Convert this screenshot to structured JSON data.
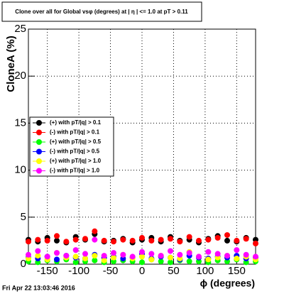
{
  "chart_data": {
    "type": "scatter",
    "title": "Clone  over all for Global vsφ (degrees) at | η | <= 1.0 at pT > 0.11",
    "x_label": "ϕ (degrees)",
    "y_label": "CloneA (%)",
    "footer": "Fri Apr 22 13:03:46 2016",
    "xlim": [
      -180,
      180
    ],
    "ylim": [
      0,
      25
    ],
    "xticks": [
      -150,
      -100,
      -50,
      0,
      50,
      100,
      150
    ],
    "yticks": [
      0,
      5,
      10,
      15,
      20,
      25
    ],
    "grid": true,
    "legend": "left",
    "x": [
      -180,
      -165,
      -150,
      -135,
      -120,
      -105,
      -90,
      -75,
      -60,
      -45,
      -30,
      -15,
      0,
      15,
      30,
      45,
      60,
      75,
      90,
      105,
      120,
      135,
      150,
      165,
      180
    ],
    "series": [
      {
        "name": "(+) with pT/|q| > 0.1",
        "color": "#000000",
        "values": [
          2.6,
          2.4,
          2.8,
          2.5,
          2.3,
          2.9,
          2.6,
          3.2,
          2.4,
          2.5,
          2.7,
          2.3,
          2.6,
          2.8,
          2.4,
          2.9,
          2.5,
          2.6,
          2.3,
          2.7,
          3.0,
          2.5,
          2.4,
          2.8,
          2.6
        ]
      },
      {
        "name": "(-) with pT/|q| > 0.1",
        "color": "#ff0000",
        "values": [
          2.4,
          2.6,
          2.5,
          3.0,
          2.4,
          2.6,
          2.7,
          3.5,
          2.5,
          2.4,
          2.6,
          2.5,
          2.8,
          2.5,
          2.6,
          2.7,
          2.4,
          2.9,
          2.5,
          2.6,
          2.8,
          3.1,
          2.5,
          2.7,
          2.2
        ]
      },
      {
        "name": "(+) with pT/|q| > 0.5",
        "color": "#00ff00",
        "values": [
          0.3,
          0.2,
          0.4,
          0.3,
          0.5,
          0.2,
          0.3,
          0.4,
          0.2,
          0.3,
          0.4,
          0.3,
          0.2,
          0.5,
          0.3,
          0.2,
          0.4,
          0.3,
          0.3,
          0.2,
          0.4,
          0.3,
          0.5,
          0.2,
          0.3
        ]
      },
      {
        "name": "(-) with pT/|q| > 0.5",
        "color": "#0000ff",
        "values": [
          0.7,
          0.6,
          0.8,
          0.5,
          0.9,
          0.7,
          0.6,
          1.0,
          0.7,
          0.8,
          0.6,
          0.7,
          1.1,
          0.6,
          0.8,
          0.7,
          0.5,
          0.9,
          0.7,
          0.6,
          0.8,
          0.7,
          0.9,
          0.6,
          0.7
        ]
      },
      {
        "name": "(+) with pT/|q| > 1.0",
        "color": "#ffff00",
        "values": [
          0.6,
          0.9,
          0.5,
          1.2,
          0.7,
          0.8,
          0.6,
          0.9,
          0.4,
          0.7,
          1.0,
          0.6,
          0.8,
          0.5,
          0.9,
          0.7,
          0.6,
          1.3,
          0.8,
          0.5,
          0.7,
          0.9,
          0.6,
          0.8,
          0.5
        ]
      },
      {
        "name": "(-) with pT/|q| > 1.0",
        "color": "#ff00ff",
        "values": [
          1.0,
          1.4,
          0.8,
          1.2,
          0.9,
          1.5,
          1.1,
          2.6,
          0.9,
          1.2,
          1.0,
          0.8,
          1.3,
          1.1,
          0.9,
          1.4,
          1.0,
          1.2,
          0.8,
          1.3,
          1.1,
          0.9,
          1.5,
          1.0,
          0.8
        ]
      }
    ]
  }
}
